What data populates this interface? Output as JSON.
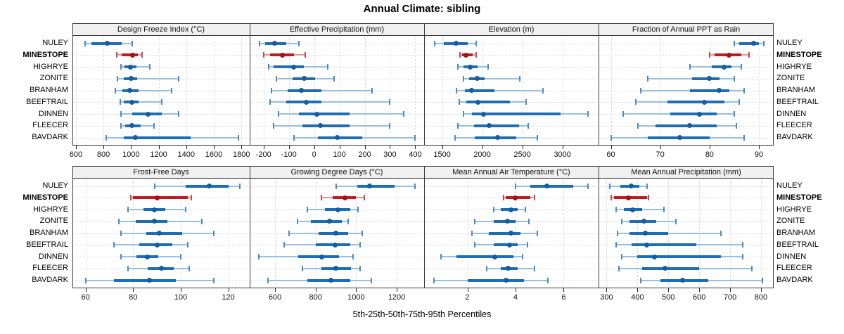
{
  "title": "Annual Climate: sibling",
  "caption": "5th-25th-50th-75th-95th Percentiles",
  "sites": [
    "NULEY",
    "MINESTOPE",
    "HIGHRYE",
    "ZONITE",
    "BRANHAM",
    "BEEFTRAIL",
    "DINNEN",
    "FLEECER",
    "BAVDARK"
  ],
  "highlight_site": "MINESTOPE",
  "colors": {
    "series_main": "#1f6eb3",
    "series_dot": "#155d9e",
    "series_light": "#9abedd",
    "series_cap": "#4c8bc2",
    "highlight_main": "#bf1b1e",
    "highlight_dot": "#a11215",
    "highlight_light": "#e39798",
    "highlight_cap": "#cc484a",
    "grid": "#d6d6d6",
    "panel_border": "#3a3a3a",
    "header_bg": "#f0f0f0"
  },
  "chart_data": [
    {
      "type": "dotplot-percentiles",
      "title": "Design Freeze Index (°C)",
      "grid_row": 0,
      "grid_col": 0,
      "xlim": [
        575,
        1860
      ],
      "ticks": [
        600,
        800,
        1000,
        1200,
        1400,
        1600,
        1800
      ],
      "percentiles": [
        "5th",
        "25th",
        "50th",
        "75th",
        "95th"
      ],
      "series": [
        {
          "site": "NULEY",
          "values": [
            665,
            715,
            825,
            930,
            1010
          ]
        },
        {
          "site": "MINESTOPE",
          "values": [
            895,
            930,
            1010,
            1050,
            1080
          ]
        },
        {
          "site": "HIGHRYE",
          "values": [
            925,
            950,
            995,
            1040,
            1135
          ]
        },
        {
          "site": "ZONITE",
          "values": [
            900,
            945,
            1000,
            1045,
            1345
          ]
        },
        {
          "site": "BRANHAM",
          "values": [
            885,
            935,
            990,
            1055,
            1295
          ]
        },
        {
          "site": "BEEFTRAIL",
          "values": [
            920,
            945,
            1005,
            1055,
            1225
          ]
        },
        {
          "site": "DINNEN",
          "values": [
            925,
            1010,
            1125,
            1225,
            1345
          ]
        },
        {
          "site": "FLEECER",
          "values": [
            925,
            955,
            1005,
            1070,
            1165
          ]
        },
        {
          "site": "BAVDARK",
          "values": [
            820,
            945,
            1030,
            1430,
            1780
          ]
        }
      ]
    },
    {
      "type": "dotplot-percentiles",
      "title": "Effective Precipitation (mm)",
      "grid_row": 0,
      "grid_col": 1,
      "xlim": [
        -255,
        435
      ],
      "ticks": [
        -200,
        -100,
        0,
        100,
        200,
        300,
        400
      ],
      "percentiles": [
        "5th",
        "25th",
        "50th",
        "75th",
        "95th"
      ],
      "series": [
        {
          "site": "NULEY",
          "values": [
            -215,
            -195,
            -155,
            -110,
            -60
          ]
        },
        {
          "site": "MINESTOPE",
          "values": [
            -200,
            -175,
            -125,
            -80,
            -35
          ]
        },
        {
          "site": "HIGHRYE",
          "values": [
            -180,
            -160,
            -80,
            -40,
            55
          ]
        },
        {
          "site": "ZONITE",
          "values": [
            -150,
            -85,
            -40,
            5,
            80
          ]
        },
        {
          "site": "BRANHAM",
          "values": [
            -170,
            -105,
            -50,
            30,
            230
          ]
        },
        {
          "site": "BEEFTRAIL",
          "values": [
            -175,
            -110,
            -30,
            30,
            300
          ]
        },
        {
          "site": "DINNEN",
          "values": [
            -140,
            -60,
            10,
            140,
            355
          ]
        },
        {
          "site": "FLEECER",
          "values": [
            -160,
            -45,
            25,
            140,
            300
          ]
        },
        {
          "site": "BAVDARK",
          "values": [
            -80,
            15,
            90,
            190,
            400
          ]
        }
      ]
    },
    {
      "type": "dotplot-percentiles",
      "title": "Elevation (m)",
      "grid_row": 0,
      "grid_col": 2,
      "xlim": [
        1275,
        3450
      ],
      "ticks": [
        1500,
        2000,
        2500,
        3000
      ],
      "percentiles": [
        "5th",
        "25th",
        "50th",
        "75th",
        "95th"
      ],
      "series": [
        {
          "site": "NULEY",
          "values": [
            1410,
            1520,
            1675,
            1815,
            1920
          ]
        },
        {
          "site": "MINESTOPE",
          "values": [
            1725,
            1745,
            1800,
            1880,
            1925
          ]
        },
        {
          "site": "HIGHRYE",
          "values": [
            1695,
            1770,
            1850,
            1945,
            2070
          ]
        },
        {
          "site": "ZONITE",
          "values": [
            1765,
            1840,
            1935,
            2025,
            2465
          ]
        },
        {
          "site": "BRANHAM",
          "values": [
            1680,
            1785,
            1865,
            2150,
            2760
          ]
        },
        {
          "site": "BEEFTRAIL",
          "values": [
            1710,
            1800,
            1945,
            2345,
            2550
          ]
        },
        {
          "site": "DINNEN",
          "values": [
            1770,
            1870,
            2015,
            2980,
            3320
          ]
        },
        {
          "site": "FLEECER",
          "values": [
            1695,
            1900,
            2090,
            2455,
            2570
          ]
        },
        {
          "site": "BAVDARK",
          "values": [
            1660,
            1910,
            2190,
            2425,
            2690
          ]
        }
      ]
    },
    {
      "type": "dotplot-percentiles",
      "title": "Fraction of Annual PPT as Rain",
      "grid_row": 0,
      "grid_col": 3,
      "xlim": [
        57.5,
        93
      ],
      "ticks": [
        60,
        70,
        80,
        90
      ],
      "percentiles": [
        "5th",
        "25th",
        "50th",
        "75th",
        "95th"
      ],
      "series": [
        {
          "site": "NULEY",
          "values": [
            85,
            86,
            89,
            90,
            91
          ]
        },
        {
          "site": "MINESTOPE",
          "values": [
            80,
            81,
            84,
            86.5,
            88
          ]
        },
        {
          "site": "HIGHRYE",
          "values": [
            76,
            80.5,
            83,
            84.5,
            86.5
          ]
        },
        {
          "site": "ZONITE",
          "values": [
            67.5,
            76.5,
            80,
            82,
            85
          ]
        },
        {
          "site": "BRANHAM",
          "values": [
            66,
            76,
            82,
            84,
            87
          ]
        },
        {
          "site": "BEEFTRAIL",
          "values": [
            65,
            71.5,
            79,
            83,
            86
          ]
        },
        {
          "site": "DINNEN",
          "values": [
            62.5,
            72,
            78,
            81.5,
            85
          ]
        },
        {
          "site": "FLEECER",
          "values": [
            65.5,
            69,
            76,
            81.5,
            85.5
          ]
        },
        {
          "site": "BAVDARK",
          "values": [
            60,
            67.5,
            74,
            80,
            87
          ]
        }
      ]
    },
    {
      "type": "dotplot-percentiles",
      "title": "Frost-Free Days",
      "grid_row": 1,
      "grid_col": 0,
      "xlim": [
        54.5,
        129
      ],
      "ticks": [
        60,
        80,
        100,
        120
      ],
      "percentiles": [
        "5th",
        "25th",
        "50th",
        "75th",
        "95th"
      ],
      "series": [
        {
          "site": "NULEY",
          "values": [
            89,
            102,
            112,
            120,
            125
          ]
        },
        {
          "site": "MINESTOPE",
          "values": [
            79,
            80,
            90,
            103,
            104.5
          ]
        },
        {
          "site": "HIGHRYE",
          "values": [
            78,
            84.5,
            89,
            93.5,
            102
          ]
        },
        {
          "site": "ZONITE",
          "values": [
            74,
            81,
            89,
            94.5,
            109
          ]
        },
        {
          "site": "BRANHAM",
          "values": [
            75,
            85.5,
            91,
            100.5,
            114
          ]
        },
        {
          "site": "BEEFTRAIL",
          "values": [
            72,
            82.5,
            90,
            96.5,
            103
          ]
        },
        {
          "site": "DINNEN",
          "values": [
            75,
            81.5,
            86,
            90.5,
            100
          ]
        },
        {
          "site": "FLEECER",
          "values": [
            78,
            86,
            92,
            97,
            103.5
          ]
        },
        {
          "site": "BAVDARK",
          "values": [
            60,
            72,
            87,
            98,
            114
          ]
        }
      ]
    },
    {
      "type": "dotplot-percentiles",
      "title": "Growing Degree Days (°C)",
      "grid_row": 1,
      "grid_col": 1,
      "xlim": [
        475,
        1335
      ],
      "ticks": [
        600,
        800,
        1000,
        1200
      ],
      "percentiles": [
        "5th",
        "25th",
        "50th",
        "75th",
        "95th"
      ],
      "series": [
        {
          "site": "NULEY",
          "values": [
            900,
            1005,
            1065,
            1190,
            1290
          ]
        },
        {
          "site": "MINESTOPE",
          "values": [
            830,
            885,
            945,
            1000,
            1040
          ]
        },
        {
          "site": "HIGHRYE",
          "values": [
            760,
            845,
            910,
            970,
            1010
          ]
        },
        {
          "site": "ZONITE",
          "values": [
            710,
            775,
            870,
            930,
            960
          ]
        },
        {
          "site": "BRANHAM",
          "values": [
            670,
            815,
            900,
            960,
            1030
          ]
        },
        {
          "site": "BEEFTRAIL",
          "values": [
            645,
            800,
            895,
            970,
            1020
          ]
        },
        {
          "site": "DINNEN",
          "values": [
            520,
            715,
            830,
            915,
            985
          ]
        },
        {
          "site": "FLEECER",
          "values": [
            735,
            830,
            900,
            975,
            1020
          ]
        },
        {
          "site": "BAVDARK",
          "values": [
            565,
            760,
            875,
            970,
            1075
          ]
        }
      ]
    },
    {
      "type": "dotplot-percentiles",
      "title": "Mean Annual Air Temperature (°C)",
      "grid_row": 1,
      "grid_col": 2,
      "xlim": [
        0.2,
        7.45
      ],
      "ticks": [
        2,
        4,
        6
      ],
      "percentiles": [
        "5th",
        "25th",
        "50th",
        "75th",
        "95th"
      ],
      "series": [
        {
          "site": "NULEY",
          "values": [
            4.0,
            4.6,
            5.3,
            6.4,
            7.0
          ]
        },
        {
          "site": "MINESTOPE",
          "values": [
            3.5,
            3.6,
            4.0,
            4.6,
            4.8
          ]
        },
        {
          "site": "HIGHRYE",
          "values": [
            3.1,
            3.4,
            3.8,
            4.1,
            4.4
          ]
        },
        {
          "site": "ZONITE",
          "values": [
            2.3,
            3.1,
            3.65,
            4.0,
            4.55
          ]
        },
        {
          "site": "BRANHAM",
          "values": [
            2.2,
            2.9,
            3.8,
            4.2,
            4.9
          ]
        },
        {
          "site": "BEEFTRAIL",
          "values": [
            2.3,
            3.1,
            3.75,
            4.1,
            4.5
          ]
        },
        {
          "site": "DINNEN",
          "values": [
            0.9,
            1.55,
            3.15,
            3.9,
            4.3
          ]
        },
        {
          "site": "FLEECER",
          "values": [
            2.8,
            3.4,
            3.7,
            4.1,
            4.8
          ]
        },
        {
          "site": "BAVDARK",
          "values": [
            0.6,
            2.0,
            3.6,
            4.35,
            5.35
          ]
        }
      ]
    },
    {
      "type": "dotplot-percentiles",
      "title": "Mean Annual Precipitation (mm)",
      "grid_row": 1,
      "grid_col": 3,
      "xlim": [
        274,
        841
      ],
      "ticks": [
        300,
        400,
        500,
        600,
        700,
        800
      ],
      "percentiles": [
        "5th",
        "25th",
        "50th",
        "75th",
        "95th"
      ],
      "series": [
        {
          "site": "NULEY",
          "values": [
            310,
            345,
            380,
            405,
            430
          ]
        },
        {
          "site": "MINESTOPE",
          "values": [
            315,
            325,
            370,
            430,
            435
          ]
        },
        {
          "site": "HIGHRYE",
          "values": [
            330,
            355,
            385,
            415,
            485
          ]
        },
        {
          "site": "ZONITE",
          "values": [
            350,
            375,
            420,
            460,
            525
          ]
        },
        {
          "site": "BRANHAM",
          "values": [
            335,
            375,
            425,
            500,
            670
          ]
        },
        {
          "site": "BEEFTRAIL",
          "values": [
            330,
            380,
            430,
            590,
            740
          ]
        },
        {
          "site": "DINNEN",
          "values": [
            350,
            400,
            455,
            670,
            740
          ]
        },
        {
          "site": "FLEECER",
          "values": [
            340,
            415,
            490,
            600,
            770
          ]
        },
        {
          "site": "BAVDARK",
          "values": [
            410,
            475,
            545,
            630,
            805
          ]
        }
      ]
    }
  ]
}
